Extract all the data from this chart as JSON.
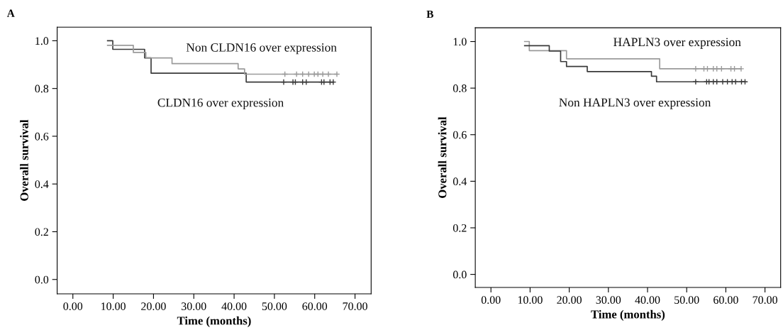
{
  "chart_data": [
    {
      "type": "step",
      "title": "A",
      "xlabel": "Time (months)",
      "ylabel": "Overall survival",
      "xlim": [
        -3.9,
        74
      ],
      "ylim": [
        -0.06,
        1.057
      ],
      "xticks": [
        {
          "value": 0,
          "label": "0.00"
        },
        {
          "value": 10,
          "label": "10.00"
        },
        {
          "value": 20,
          "label": "20.00"
        },
        {
          "value": 30,
          "label": "30.00"
        },
        {
          "value": 40,
          "label": "40.00"
        },
        {
          "value": 50,
          "label": "50.00"
        },
        {
          "value": 60,
          "label": "60.00"
        },
        {
          "value": 70,
          "label": "70.00"
        }
      ],
      "yticks": [
        {
          "value": 0,
          "label": "0.0"
        },
        {
          "value": 0.2,
          "label": "0.2"
        },
        {
          "value": 0.4,
          "label": "0.4"
        },
        {
          "value": 0.6,
          "label": "0.6"
        },
        {
          "value": 0.8,
          "label": "0.8"
        },
        {
          "value": 1.0,
          "label": "1.0"
        }
      ],
      "grid": false,
      "series": [
        {
          "name": "CLDN16 over expression",
          "color": "#3a3a3a",
          "x": [
            8.6,
            9.9,
            17.8,
            19.4,
            43.0,
            64.7
          ],
          "values": [
            1.0,
            0.964,
            0.928,
            0.864,
            0.827,
            0.827
          ]
        },
        {
          "name": "Non CLDN16 over expression",
          "color": "#9a9a9a",
          "x": [
            8.6,
            15.0,
            18.1,
            24.6,
            41.0,
            42.6,
            65.5
          ],
          "values": [
            0.981,
            0.951,
            0.928,
            0.904,
            0.882,
            0.86,
            0.86
          ]
        },
        {
          "type": "scatter",
          "marker": "cross",
          "color": "#3a3a3a",
          "x": [
            52.3,
            54.6,
            55.2,
            57.0,
            57.9,
            61.7,
            62.3,
            63.8,
            64.6
          ],
          "values": [
            0.827,
            0.827,
            0.827,
            0.827,
            0.827,
            0.827,
            0.827,
            0.827,
            0.827
          ]
        },
        {
          "type": "scatter",
          "marker": "cross",
          "color": "#9a9a9a",
          "x": [
            52.6,
            55.5,
            57.0,
            58.5,
            59.9,
            60.8,
            62.0,
            63.4,
            65.5
          ],
          "values": [
            0.86,
            0.86,
            0.86,
            0.86,
            0.86,
            0.86,
            0.86,
            0.86,
            0.86
          ]
        }
      ]
    },
    {
      "type": "step",
      "title": "B",
      "xlabel": "Time (months)",
      "ylabel": "Overall survival",
      "xlim": [
        -4.0,
        74
      ],
      "ylim": [
        -0.056,
        1.059
      ],
      "xticks": [
        {
          "value": 0,
          "label": "0.00"
        },
        {
          "value": 10,
          "label": "10.00"
        },
        {
          "value": 20,
          "label": "20.00"
        },
        {
          "value": 30,
          "label": "30.00"
        },
        {
          "value": 40,
          "label": "40.00"
        },
        {
          "value": 50,
          "label": "50.00"
        },
        {
          "value": 60,
          "label": "60.00"
        },
        {
          "value": 70,
          "label": "70.00"
        }
      ],
      "yticks": [
        {
          "value": 0,
          "label": "0.0"
        },
        {
          "value": 0.2,
          "label": "0.2"
        },
        {
          "value": 0.4,
          "label": "0.4"
        },
        {
          "value": 0.6,
          "label": "0.6"
        },
        {
          "value": 0.8,
          "label": "0.8"
        },
        {
          "value": 1.0,
          "label": "1.0"
        }
      ],
      "grid": false,
      "series": [
        {
          "name": "HAPLN3 over expression",
          "color": "#9a9a9a",
          "x": [
            8.6,
            9.8,
            19.3,
            43.1,
            63.9
          ],
          "values": [
            1.0,
            0.961,
            0.926,
            0.883,
            0.883
          ]
        },
        {
          "name": "Non HAPLN3 over expression",
          "color": "#3a3a3a",
          "x": [
            8.6,
            14.9,
            17.8,
            19.3,
            24.6,
            41.0,
            42.3,
            64.9
          ],
          "values": [
            0.982,
            0.959,
            0.914,
            0.893,
            0.871,
            0.851,
            0.827,
            0.827
          ]
        },
        {
          "type": "scatter",
          "marker": "cross",
          "color": "#9a9a9a",
          "x": [
            52.3,
            54.4,
            55.3,
            56.8,
            57.7,
            58.9,
            61.3,
            62.2,
            63.9
          ],
          "values": [
            0.883,
            0.883,
            0.883,
            0.883,
            0.883,
            0.883,
            0.883,
            0.883,
            0.883
          ]
        },
        {
          "type": "scatter",
          "marker": "cross",
          "color": "#3a3a3a",
          "x": [
            52.3,
            55.1,
            55.7,
            56.8,
            57.7,
            59.2,
            60.4,
            61.6,
            62.5,
            64.0,
            64.9
          ],
          "values": [
            0.827,
            0.827,
            0.827,
            0.827,
            0.827,
            0.827,
            0.827,
            0.827,
            0.827,
            0.827,
            0.827
          ]
        }
      ]
    }
  ]
}
